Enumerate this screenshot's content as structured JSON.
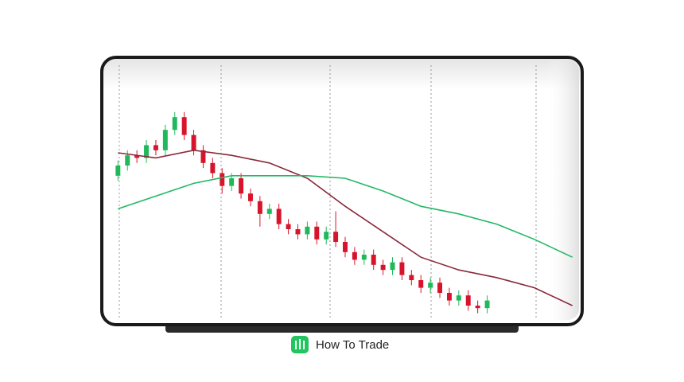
{
  "chart_data": {
    "type": "candlestick",
    "open": [
      56,
      60,
      64,
      63,
      68,
      66,
      74,
      79,
      72,
      66,
      61,
      57,
      52,
      55,
      49,
      46,
      41,
      43,
      37,
      35,
      33,
      36,
      31,
      34,
      30,
      26,
      23,
      25,
      21,
      19,
      22,
      17,
      15,
      12,
      14,
      10,
      7,
      9,
      5,
      4
    ],
    "close": [
      60,
      64,
      63,
      68,
      66,
      74,
      79,
      72,
      66,
      61,
      57,
      52,
      55,
      49,
      46,
      41,
      43,
      37,
      35,
      33,
      36,
      31,
      34,
      30,
      26,
      23,
      25,
      21,
      19,
      22,
      17,
      15,
      12,
      14,
      10,
      7,
      9,
      5,
      4,
      7
    ],
    "high": [
      62,
      66,
      66,
      70,
      70,
      76,
      81,
      81,
      74,
      68,
      63,
      59,
      57,
      57,
      51,
      48,
      45,
      45,
      39,
      37,
      38,
      38,
      36,
      42,
      32,
      28,
      27,
      27,
      23,
      24,
      24,
      19,
      17,
      16,
      16,
      12,
      11,
      11,
      7,
      9
    ],
    "low": [
      54,
      58,
      61,
      61,
      64,
      64,
      72,
      70,
      64,
      59,
      55,
      49,
      50,
      47,
      44,
      36,
      39,
      35,
      33,
      31,
      31,
      29,
      29,
      28,
      24,
      21,
      21,
      19,
      17,
      17,
      15,
      13,
      10,
      10,
      8,
      5,
      5,
      3,
      2,
      2
    ],
    "up_color": "#1fb85a",
    "down_color": "#d7142b",
    "lines": [
      {
        "color": "#8a2a3a",
        "x": [
          0,
          4,
          8,
          12,
          16,
          20,
          24,
          28,
          32,
          36,
          40,
          44,
          48
        ],
        "values": [
          65,
          63,
          66,
          64,
          61,
          55,
          44,
          34,
          24,
          19,
          16,
          12,
          5
        ]
      },
      {
        "color": "#22b866",
        "x": [
          0,
          4,
          8,
          12,
          16,
          20,
          24,
          28,
          32,
          36,
          40,
          44,
          48
        ],
        "values": [
          43,
          48,
          53,
          56,
          56,
          56,
          55,
          50,
          44,
          41,
          37,
          31,
          24
        ]
      }
    ],
    "xlim": [
      -0.7,
      48.7
    ],
    "ylim": [
      0,
      100
    ]
  },
  "footer": {
    "brand": "How To Trade"
  }
}
